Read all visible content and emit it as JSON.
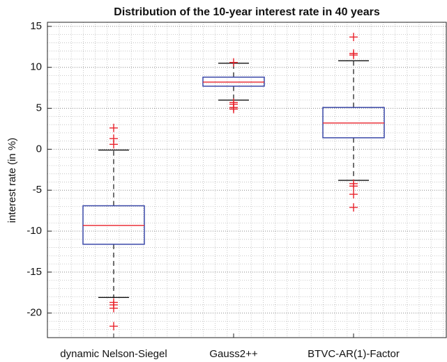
{
  "chart_data": {
    "type": "box",
    "title": "Distribution of the 10-year interest rate in 40 years",
    "y_label": "interest rate (in %)",
    "categories": [
      "dynamic Nelson-Siegel",
      "Gauss2++",
      "BTVC-AR(1)-Factor"
    ],
    "ylim": [
      -23,
      15.5
    ],
    "yticks": [
      -20,
      -15,
      -10,
      -5,
      0,
      5,
      10,
      15
    ],
    "yminorticks": [
      -23,
      -22,
      -21,
      -19,
      -18,
      -17,
      -16,
      -14,
      -13,
      -12,
      -11,
      -9,
      -8,
      -7,
      -6,
      -4,
      -3,
      -2,
      -1,
      1,
      2,
      3,
      4,
      6,
      7,
      8,
      9,
      11,
      12,
      13,
      14
    ],
    "grid": true,
    "box_color": "#3a48a8",
    "median_color": "#e8212a",
    "outlier_color": "#e8212a",
    "whisker_color": "#111111",
    "boxes": [
      {
        "whisker_low": -18.1,
        "q1": -11.6,
        "median": -9.3,
        "q3": -6.9,
        "whisker_high": -0.1,
        "outliers": [
          2.6,
          1.3,
          0.6,
          -18.7,
          -19.0,
          -19.4,
          -21.6
        ]
      },
      {
        "whisker_low": 6.0,
        "q1": 7.7,
        "median": 8.2,
        "q3": 8.8,
        "whisker_high": 10.5,
        "outliers": [
          10.6,
          5.7,
          5.5,
          5.1,
          4.9
        ]
      },
      {
        "whisker_low": -3.8,
        "q1": 1.4,
        "median": 3.2,
        "q3": 5.1,
        "whisker_high": 10.8,
        "outliers": [
          13.7,
          11.7,
          11.5,
          -4.2,
          -4.5,
          -5.5,
          -7.1
        ]
      }
    ]
  }
}
